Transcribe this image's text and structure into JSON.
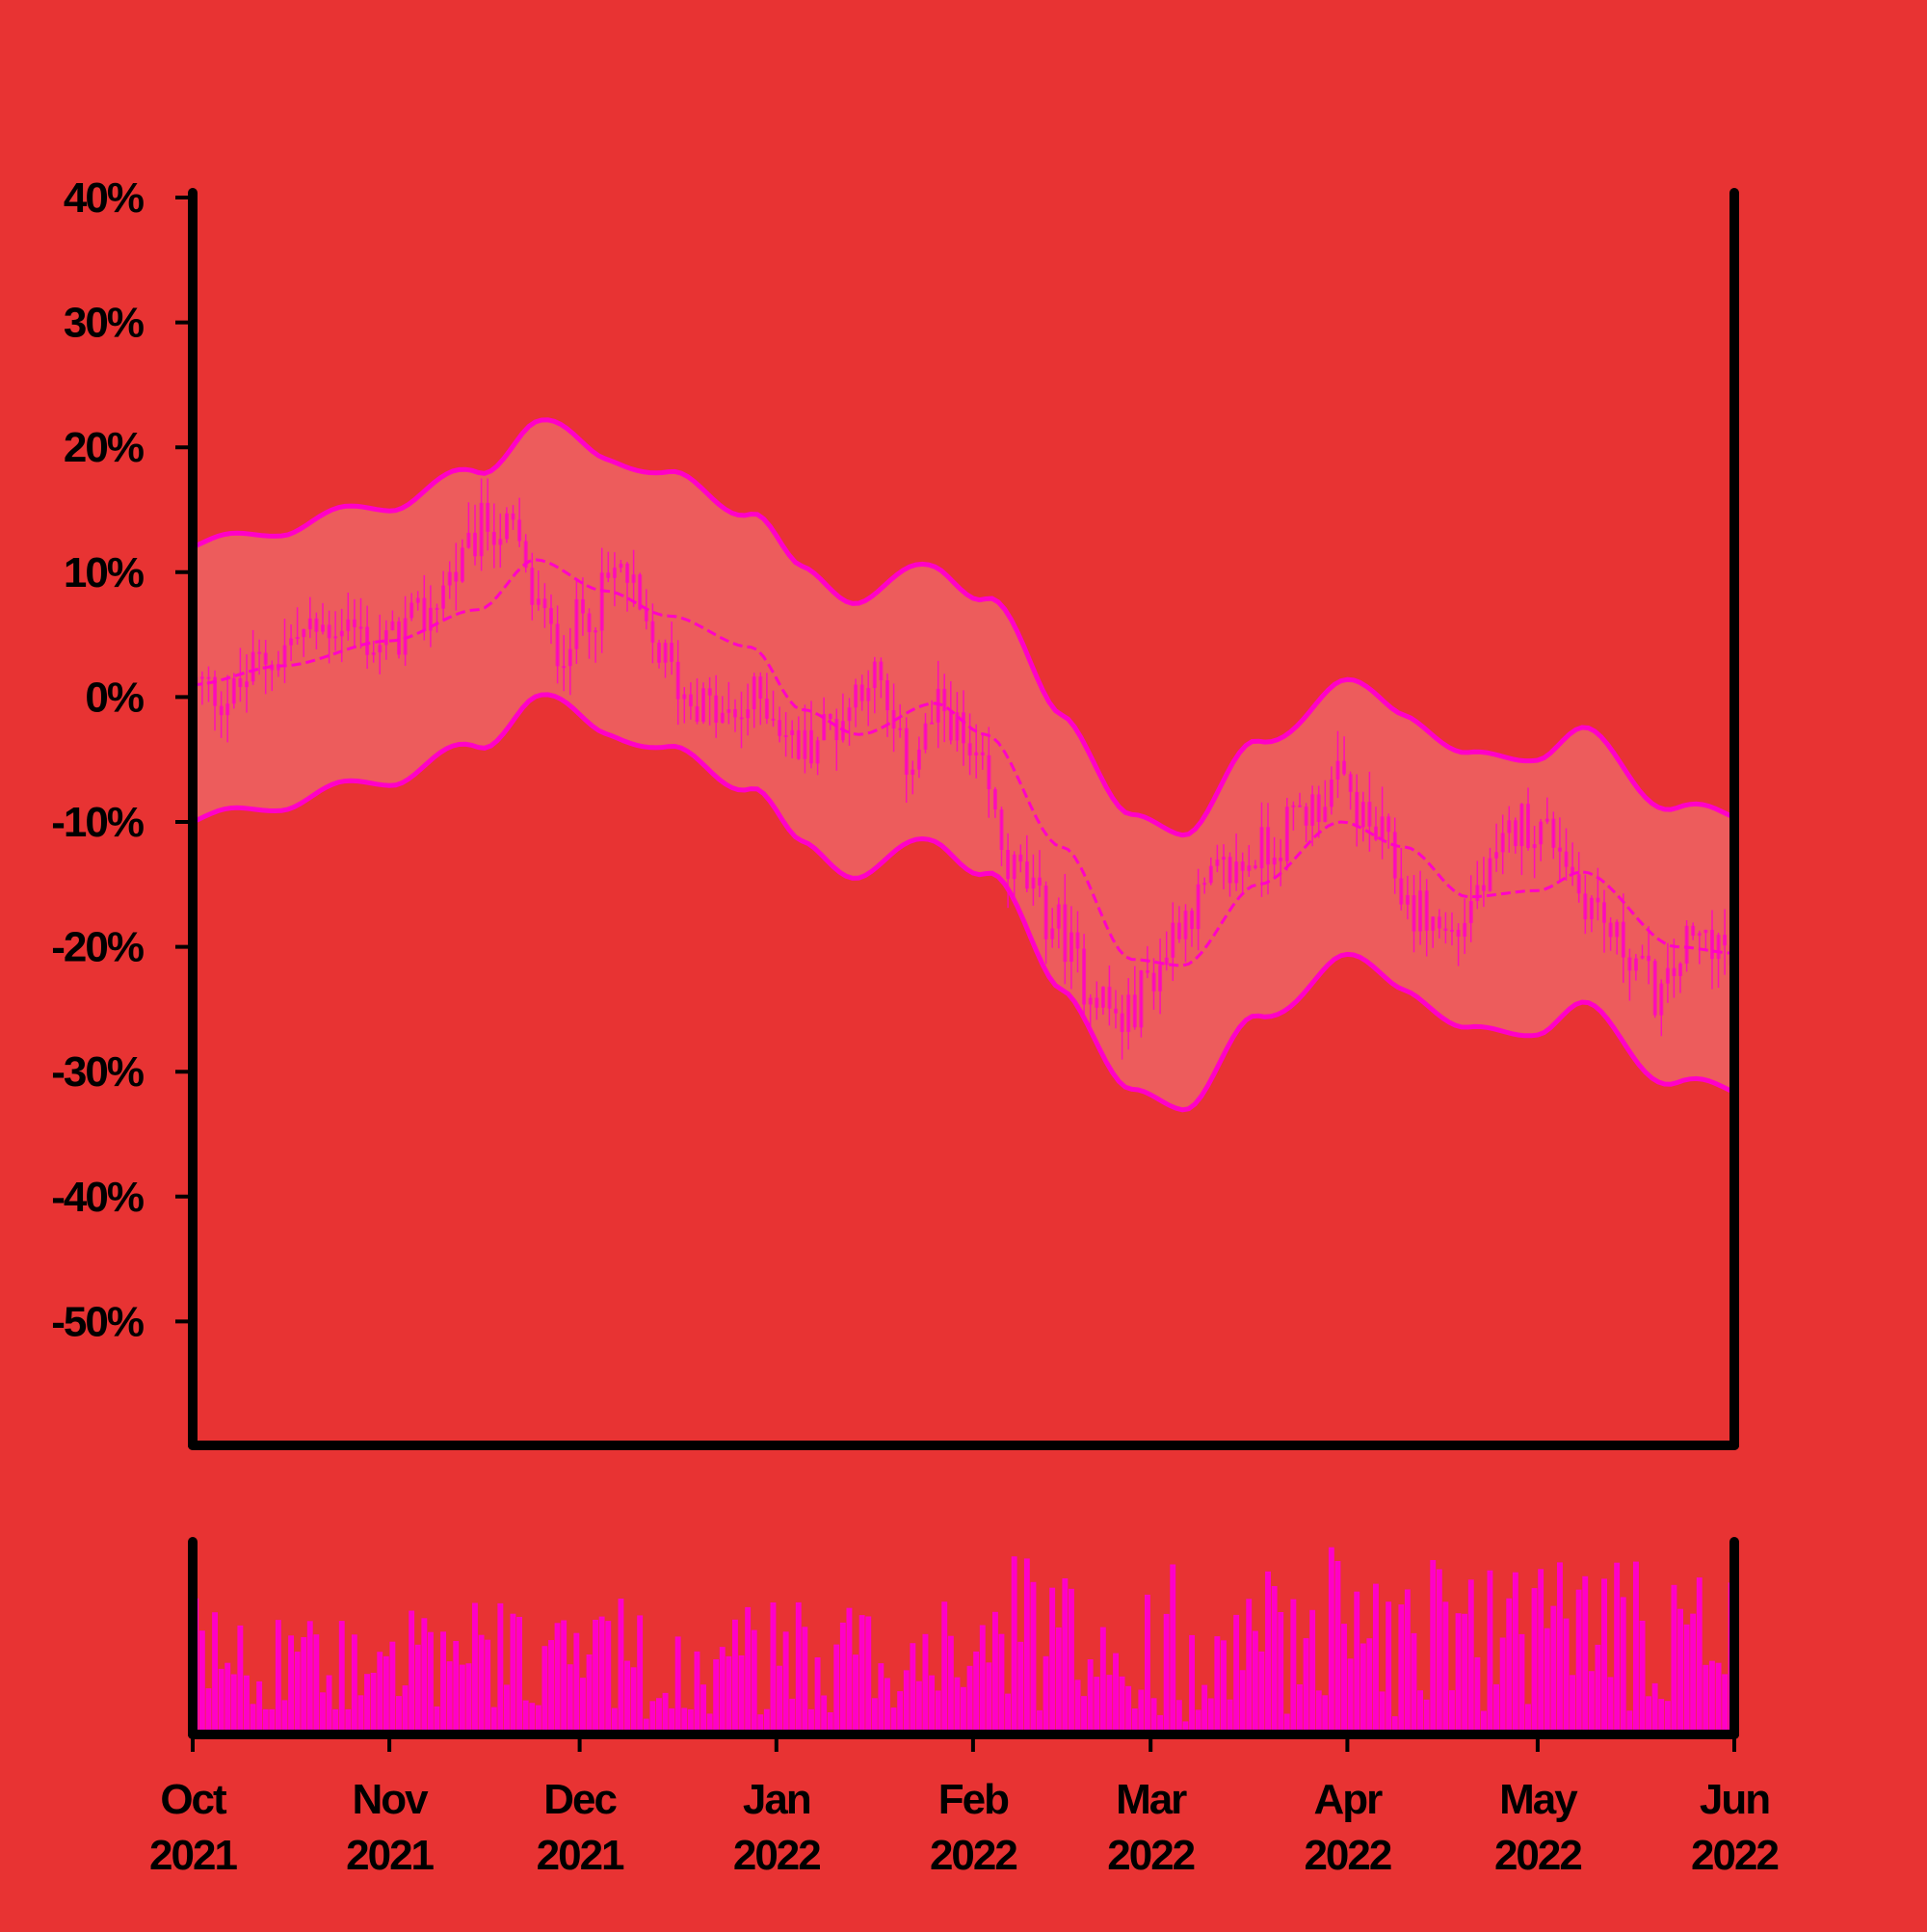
{
  "colors": {
    "background": "#e83333",
    "band_fill": "#ed5c5c",
    "accent": "#ff00c8",
    "axis": "#000000"
  },
  "chart_data": {
    "type": "candlestick",
    "title": "",
    "xlabel": "",
    "ylabel": "",
    "y_unit": "%",
    "ylim": [
      -60,
      40
    ],
    "y_ticks": [
      40,
      30,
      20,
      10,
      0,
      -10,
      -20,
      -30,
      -40,
      -50
    ],
    "y_tick_labels": [
      "40%",
      "30%",
      "20%",
      "10%",
      "0%",
      "-10%",
      "-20%",
      "-30%",
      "-40%",
      "-50%"
    ],
    "x_range": [
      "2021-10-01",
      "2022-06-01"
    ],
    "x_ticks": [
      {
        "date": "2021-10-01",
        "month": "Oct",
        "year": "2021"
      },
      {
        "date": "2021-11-01",
        "month": "Nov",
        "year": "2021"
      },
      {
        "date": "2021-12-01",
        "month": "Dec",
        "year": "2021"
      },
      {
        "date": "2022-01-01",
        "month": "Jan",
        "year": "2022"
      },
      {
        "date": "2022-02-01",
        "month": "Feb",
        "year": "2022"
      },
      {
        "date": "2022-03-01",
        "month": "Mar",
        "year": "2022"
      },
      {
        "date": "2022-04-01",
        "month": "Apr",
        "year": "2022"
      },
      {
        "date": "2022-05-01",
        "month": "May",
        "year": "2022"
      },
      {
        "date": "2022-06-01",
        "month": "Jun",
        "year": "2022"
      }
    ],
    "price_anchors": [
      {
        "date": "2021-10-01",
        "value": 1
      },
      {
        "date": "2021-10-06",
        "value": 0
      },
      {
        "date": "2021-10-12",
        "value": 3
      },
      {
        "date": "2021-10-18",
        "value": 5
      },
      {
        "date": "2021-10-24",
        "value": 6
      },
      {
        "date": "2021-10-30",
        "value": 4
      },
      {
        "date": "2021-11-05",
        "value": 6
      },
      {
        "date": "2021-11-11",
        "value": 10
      },
      {
        "date": "2021-11-16",
        "value": 14
      },
      {
        "date": "2021-11-20",
        "value": 13
      },
      {
        "date": "2021-11-23",
        "value": 8
      },
      {
        "date": "2021-11-27",
        "value": 4
      },
      {
        "date": "2021-12-02",
        "value": 7
      },
      {
        "date": "2021-12-07",
        "value": 10
      },
      {
        "date": "2021-12-12",
        "value": 4
      },
      {
        "date": "2021-12-18",
        "value": 0
      },
      {
        "date": "2021-12-24",
        "value": -2
      },
      {
        "date": "2021-12-29",
        "value": 0
      },
      {
        "date": "2022-01-04",
        "value": -4
      },
      {
        "date": "2022-01-10",
        "value": -2
      },
      {
        "date": "2022-01-15",
        "value": 2
      },
      {
        "date": "2022-01-21",
        "value": -5
      },
      {
        "date": "2022-01-27",
        "value": -1
      },
      {
        "date": "2022-02-01",
        "value": -6
      },
      {
        "date": "2022-02-07",
        "value": -14
      },
      {
        "date": "2022-02-13",
        "value": -18
      },
      {
        "date": "2022-02-19",
        "value": -23
      },
      {
        "date": "2022-02-24",
        "value": -26
      },
      {
        "date": "2022-03-01",
        "value": -22
      },
      {
        "date": "2022-03-06",
        "value": -17
      },
      {
        "date": "2022-03-13",
        "value": -14
      },
      {
        "date": "2022-03-19",
        "value": -12
      },
      {
        "date": "2022-03-25",
        "value": -9
      },
      {
        "date": "2022-03-30",
        "value": -7
      },
      {
        "date": "2022-04-05",
        "value": -11
      },
      {
        "date": "2022-04-11",
        "value": -17
      },
      {
        "date": "2022-04-17",
        "value": -19
      },
      {
        "date": "2022-04-22",
        "value": -15
      },
      {
        "date": "2022-04-28",
        "value": -10
      },
      {
        "date": "2022-05-03",
        "value": -11
      },
      {
        "date": "2022-05-08",
        "value": -16
      },
      {
        "date": "2022-05-14",
        "value": -20
      },
      {
        "date": "2022-05-20",
        "value": -24
      },
      {
        "date": "2022-05-24",
        "value": -20
      },
      {
        "date": "2022-05-28",
        "value": -19
      },
      {
        "date": "2022-06-01",
        "value": -22
      }
    ],
    "moving_average": [
      {
        "date": "2021-10-01",
        "value": 1
      },
      {
        "date": "2021-10-15",
        "value": 2.5
      },
      {
        "date": "2021-11-01",
        "value": 4.5
      },
      {
        "date": "2021-11-15",
        "value": 7
      },
      {
        "date": "2021-11-24",
        "value": 11
      },
      {
        "date": "2021-12-05",
        "value": 8.5
      },
      {
        "date": "2021-12-15",
        "value": 6.5
      },
      {
        "date": "2021-12-28",
        "value": 4
      },
      {
        "date": "2022-01-05",
        "value": -1
      },
      {
        "date": "2022-01-14",
        "value": -3
      },
      {
        "date": "2022-01-26",
        "value": -0.5
      },
      {
        "date": "2022-02-03",
        "value": -3
      },
      {
        "date": "2022-02-15",
        "value": -12
      },
      {
        "date": "2022-02-26",
        "value": -21
      },
      {
        "date": "2022-03-06",
        "value": -21.5
      },
      {
        "date": "2022-03-18",
        "value": -15
      },
      {
        "date": "2022-03-31",
        "value": -10
      },
      {
        "date": "2022-04-10",
        "value": -12
      },
      {
        "date": "2022-04-20",
        "value": -16
      },
      {
        "date": "2022-05-01",
        "value": -15.5
      },
      {
        "date": "2022-05-08",
        "value": -14
      },
      {
        "date": "2022-05-23",
        "value": -20
      },
      {
        "date": "2022-06-01",
        "value": -20.5
      }
    ],
    "band_half_width": 11,
    "volume_note": "unlabeled volume histogram below main panel, one bar per day"
  }
}
